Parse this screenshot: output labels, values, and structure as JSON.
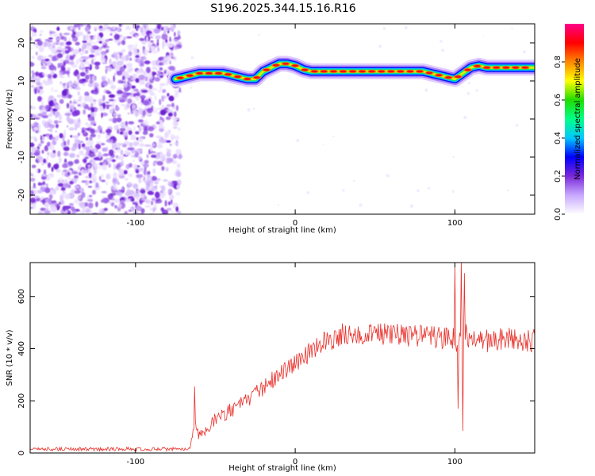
{
  "title": "S196.2025.344.15.16.R16",
  "chart_data": [
    {
      "type": "heatmap",
      "title": "S196.2025.344.15.16.R16",
      "xlabel": "Height of straight line (km)",
      "ylabel": "Frequency (Hz)",
      "xlim": [
        -166,
        150
      ],
      "ylim": [
        -25,
        25
      ],
      "x_ticks": [
        -100,
        0,
        100
      ],
      "y_ticks": [
        -20,
        -10,
        0,
        10,
        20
      ],
      "noise_region_x": [
        -166,
        -75
      ],
      "ridge": {
        "x": [
          -75,
          -70,
          -65,
          -60,
          -55,
          -50,
          -45,
          -40,
          -35,
          -30,
          -25,
          -20,
          -15,
          -10,
          -5,
          0,
          5,
          10,
          20,
          30,
          40,
          50,
          60,
          70,
          80,
          85,
          90,
          95,
          100,
          105,
          110,
          115,
          120,
          130,
          140,
          150
        ],
        "freq_hz": [
          10.5,
          11,
          11.5,
          12,
          12,
          12,
          12,
          11.5,
          11,
          10.5,
          10.5,
          12.5,
          13.5,
          14.5,
          14.5,
          14,
          13,
          12.5,
          12.5,
          12.5,
          12.5,
          12.5,
          12.5,
          12.5,
          12.5,
          12,
          11.5,
          11,
          10.5,
          12,
          13.5,
          14,
          13.5,
          13.5,
          13.5,
          13.5
        ]
      },
      "colorbar": {
        "label": "Normalized spectral amplitude",
        "range": [
          0,
          1
        ],
        "ticks": [
          "0.0",
          "0.2",
          "0.4",
          "0.6",
          "0.8"
        ],
        "colors": [
          "#ffffff",
          "#c8a8ff",
          "#7a28d8",
          "#0000ff",
          "#00c8ff",
          "#00ff88",
          "#20dd00",
          "#ffff00",
          "#ff8800",
          "#ff0000",
          "#ff0088"
        ]
      }
    },
    {
      "type": "line",
      "xlabel": "Height of straight line (km)",
      "ylabel": "SNR (10 * v/v)",
      "xlim": [
        -166,
        150
      ],
      "ylim": [
        0,
        730
      ],
      "x_ticks": [
        -100,
        0,
        100
      ],
      "y_ticks": [
        0,
        200,
        400,
        600
      ],
      "color": "#e8322c",
      "trend": {
        "x": [
          -166,
          -70,
          -66,
          -63,
          -60,
          -50,
          -40,
          -30,
          -20,
          -10,
          0,
          10,
          20,
          30,
          40,
          50,
          60,
          70,
          80,
          90,
          95,
          100,
          102,
          104,
          106,
          108,
          110,
          120,
          130,
          140,
          150
        ],
        "y": [
          15,
          15,
          20,
          130,
          60,
          130,
          165,
          200,
          250,
          300,
          350,
          390,
          430,
          455,
          460,
          460,
          455,
          450,
          450,
          440,
          440,
          440,
          420,
          460,
          470,
          430,
          440,
          430,
          440,
          435,
          430
        ]
      },
      "spikes": [
        {
          "x": -63,
          "y": 255
        },
        {
          "x": 100,
          "y": 720
        },
        {
          "x": 102,
          "y": 170
        },
        {
          "x": 104,
          "y": 740
        },
        {
          "x": 105,
          "y": 85
        },
        {
          "x": 106,
          "y": 690
        }
      ]
    }
  ]
}
